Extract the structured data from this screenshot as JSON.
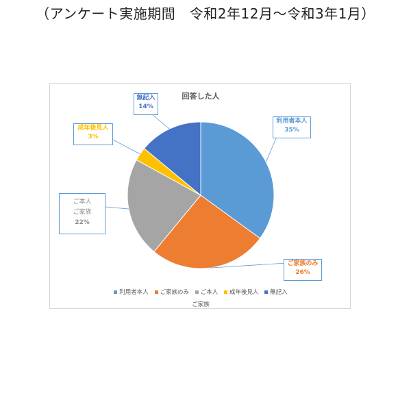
{
  "caption": "（アンケート実施期間　令和2年12月～令和3年1月）",
  "chart_data": {
    "type": "pie",
    "title": "回答した人",
    "slices": [
      {
        "label": "利用者本人",
        "value": 35,
        "percent_label": "35%",
        "color": "#5b9bd5",
        "text_color": "#5b9bd5"
      },
      {
        "label": "ご家族のみ",
        "value": 26,
        "percent_label": "26%",
        "color": "#ed7d31",
        "text_color": "#ed7d31"
      },
      {
        "label": "ご本人\nご家族",
        "value": 22,
        "percent_label": "22%",
        "color": "#a5a5a5",
        "text_color": "#8c8c8c"
      },
      {
        "label": "成年後見人",
        "value": 3,
        "percent_label": "3%",
        "color": "#ffc000",
        "text_color": "#ffc000"
      },
      {
        "label": "無記入",
        "value": 14,
        "percent_label": "14%",
        "color": "#4472c4",
        "text_color": "#4472c4"
      }
    ],
    "legend": {
      "items": [
        "利用者本人",
        "ご家族のみ",
        "ご本人",
        "成年後見人",
        "無記入"
      ],
      "wrapped_line": "ご家族",
      "placement": "bottom"
    },
    "callout_border_color": "#5b9bd5"
  }
}
